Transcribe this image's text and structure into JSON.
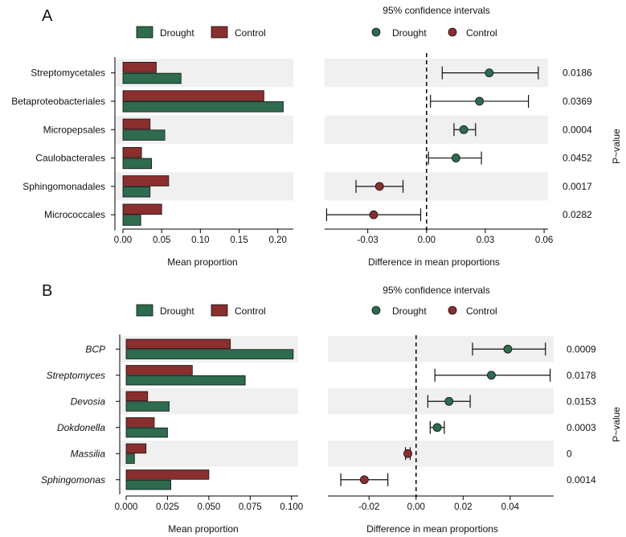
{
  "colors": {
    "drought": "#2e6b4f",
    "control": "#8b2e2e",
    "band": "#f0f0f0",
    "axis": "#000000"
  },
  "legend": {
    "drought": "Drought",
    "control": "Control"
  },
  "ci_title": "95% confidence intervals",
  "pvalue_label": "P~value",
  "chart_data": [
    {
      "panel": "A",
      "type": "bar",
      "italic_labels": false,
      "categories": [
        "Streptomycetales",
        "Betaproteobacteriales",
        "Micropepsales",
        "Caulobacterales",
        "Sphingomonadales",
        "Micrococcales"
      ],
      "series": [
        {
          "name": "Control",
          "values": [
            0.043,
            0.182,
            0.035,
            0.024,
            0.059,
            0.05
          ]
        },
        {
          "name": "Drought",
          "values": [
            0.075,
            0.207,
            0.054,
            0.037,
            0.035,
            0.023
          ]
        }
      ],
      "xlabel": "Mean proportion",
      "xlim": [
        0,
        0.22
      ],
      "xticks": [
        0,
        0.05,
        0.1,
        0.15,
        0.2
      ],
      "xtick_labels": [
        "0.00",
        "0.05",
        "0.10",
        "0.15",
        "0.20"
      ],
      "ci": {
        "title": "95% confidence intervals",
        "xlabel": "Difference in mean proportions",
        "xlim": [
          -0.052,
          0.062
        ],
        "xticks": [
          -0.03,
          0,
          0.03,
          0.06
        ],
        "xtick_labels": [
          "-0.03",
          "0.00",
          "0.03",
          "0.06"
        ],
        "points": [
          {
            "estimate": 0.032,
            "lower": 0.008,
            "upper": 0.057,
            "group": "Drought"
          },
          {
            "estimate": 0.027,
            "lower": 0.002,
            "upper": 0.052,
            "group": "Drought"
          },
          {
            "estimate": 0.019,
            "lower": 0.014,
            "upper": 0.025,
            "group": "Drought"
          },
          {
            "estimate": 0.015,
            "lower": 0.001,
            "upper": 0.028,
            "group": "Drought"
          },
          {
            "estimate": -0.024,
            "lower": -0.036,
            "upper": -0.012,
            "group": "Control"
          },
          {
            "estimate": -0.027,
            "lower": -0.051,
            "upper": -0.003,
            "group": "Control"
          }
        ],
        "pvalues": [
          "0.0186",
          "0.0369",
          "0.0004",
          "0.0452",
          "0.0017",
          "0.0282"
        ]
      }
    },
    {
      "panel": "B",
      "type": "bar",
      "italic_labels": true,
      "categories": [
        "BCP",
        "Streptomyces",
        "Devosia",
        "Dokdonella",
        "Massilia",
        "Sphingomonas"
      ],
      "series": [
        {
          "name": "Control",
          "values": [
            0.063,
            0.04,
            0.013,
            0.017,
            0.012,
            0.05
          ]
        },
        {
          "name": "Drought",
          "values": [
            0.101,
            0.072,
            0.026,
            0.025,
            0.005,
            0.027
          ]
        }
      ],
      "xlabel": "Mean proportion",
      "xlim": [
        0,
        0.104
      ],
      "xticks": [
        0,
        0.025,
        0.05,
        0.075,
        0.1
      ],
      "xtick_labels": [
        "0.000",
        "0.025",
        "0.050",
        "0.075",
        "0.100"
      ],
      "ci": {
        "title": "95% confidence intervals",
        "xlabel": "Difference in mean proportions",
        "xlim": [
          -0.0375,
          0.0585
        ],
        "xticks": [
          -0.02,
          0,
          0.02,
          0.04
        ],
        "xtick_labels": [
          "-0.02",
          "0.00",
          "0.02",
          "0.04"
        ],
        "points": [
          {
            "estimate": 0.039,
            "lower": 0.024,
            "upper": 0.055,
            "group": "Drought"
          },
          {
            "estimate": 0.032,
            "lower": 0.008,
            "upper": 0.057,
            "group": "Drought"
          },
          {
            "estimate": 0.014,
            "lower": 0.005,
            "upper": 0.023,
            "group": "Drought"
          },
          {
            "estimate": 0.009,
            "lower": 0.006,
            "upper": 0.012,
            "group": "Drought"
          },
          {
            "estimate": -0.0035,
            "lower": -0.0045,
            "upper": -0.0025,
            "group": "Control"
          },
          {
            "estimate": -0.022,
            "lower": -0.032,
            "upper": -0.012,
            "group": "Control"
          }
        ],
        "pvalues": [
          "0.0009",
          "0.0178",
          "0.0153",
          "0.0003",
          "0",
          "0.0014"
        ]
      }
    }
  ]
}
